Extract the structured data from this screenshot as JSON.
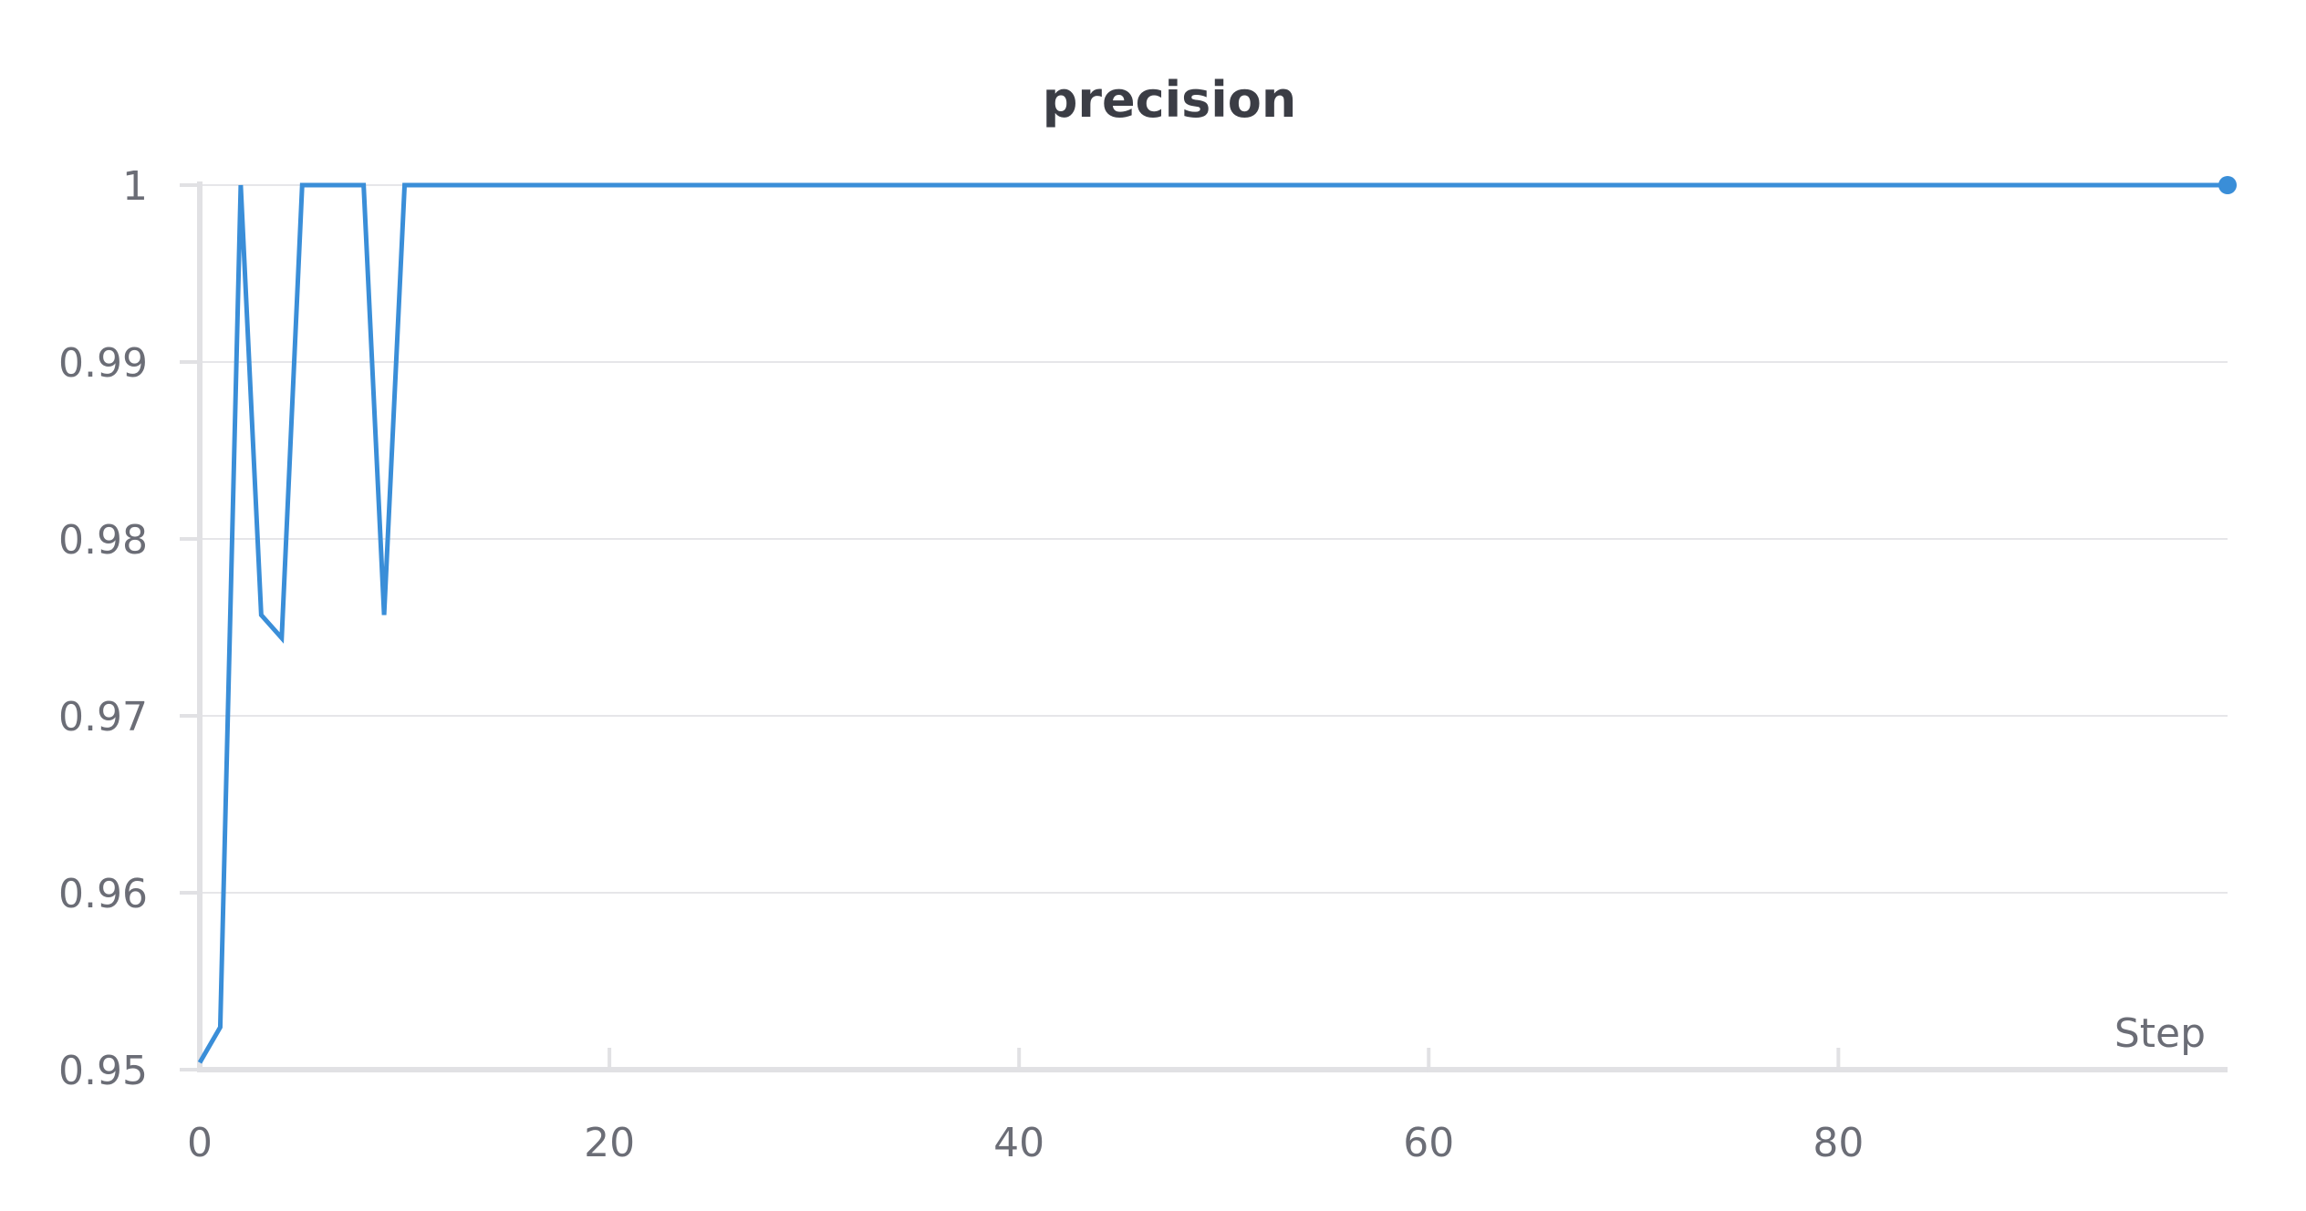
{
  "chart_data": {
    "type": "line",
    "title": "precision",
    "xlabel": "Step",
    "ylabel": "",
    "xlim": [
      0,
      99
    ],
    "ylim": [
      0.95,
      1
    ],
    "x_ticks": [
      0,
      20,
      40,
      60,
      80
    ],
    "y_ticks": [
      0.95,
      0.96,
      0.97,
      0.98,
      0.99,
      1
    ],
    "x_tick_labels": [
      "0",
      "20",
      "40",
      "60",
      "80"
    ],
    "y_tick_labels": [
      "0.95",
      "0.96",
      "0.97",
      "0.98",
      "0.99",
      "1"
    ],
    "grid": true,
    "colors": {
      "series": "#3a8ed8",
      "grid": "#e6e6e9",
      "axis": "#e1e1e4",
      "text": "#6b6d76",
      "title": "#3b3d45"
    },
    "series": [
      {
        "x": [
          0,
          1,
          2,
          3,
          4,
          5,
          6,
          7,
          8,
          9,
          10,
          11,
          12,
          13,
          14,
          15,
          16,
          17,
          18,
          19,
          20,
          21,
          22,
          23,
          24,
          25,
          26,
          27,
          28,
          29,
          30,
          31,
          32,
          33,
          34,
          35,
          36,
          37,
          38,
          39,
          40,
          41,
          42,
          43,
          44,
          45,
          46,
          47,
          48,
          49,
          50,
          51,
          52,
          53,
          54,
          55,
          56,
          57,
          58,
          59,
          60,
          61,
          62,
          63,
          64,
          65,
          66,
          67,
          68,
          69,
          70,
          71,
          72,
          73,
          74,
          75,
          76,
          77,
          78,
          79,
          80,
          81,
          82,
          83,
          84,
          85,
          86,
          87,
          88,
          89,
          90,
          91,
          92,
          93,
          94,
          95,
          96,
          97,
          98,
          99
        ],
        "y": [
          0.9504,
          0.9524,
          1,
          0.9757,
          0.9744,
          1,
          1,
          1,
          1,
          0.9757,
          1,
          1,
          1,
          1,
          1,
          1,
          1,
          1,
          1,
          1,
          1,
          1,
          1,
          1,
          1,
          1,
          1,
          1,
          1,
          1,
          1,
          1,
          1,
          1,
          1,
          1,
          1,
          1,
          1,
          1,
          1,
          1,
          1,
          1,
          1,
          1,
          1,
          1,
          1,
          1,
          1,
          1,
          1,
          1,
          1,
          1,
          1,
          1,
          1,
          1,
          1,
          1,
          1,
          1,
          1,
          1,
          1,
          1,
          1,
          1,
          1,
          1,
          1,
          1,
          1,
          1,
          1,
          1,
          1,
          1,
          1,
          1,
          1,
          1,
          1,
          1,
          1,
          1,
          1,
          1,
          1,
          1,
          1,
          1,
          1,
          1,
          1,
          1,
          1,
          1
        ],
        "last_point_marker": true
      }
    ]
  }
}
